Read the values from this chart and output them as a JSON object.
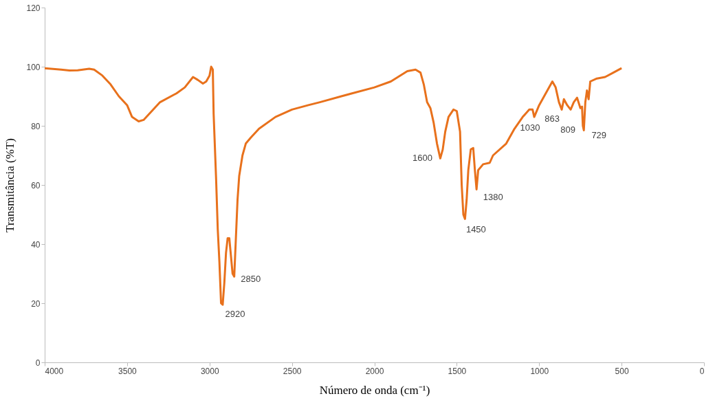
{
  "chart_data": {
    "type": "line",
    "xlabel": "Número de onda (cm⁻¹)",
    "ylabel": "Transmitância (%T)",
    "xlim": [
      4000,
      0
    ],
    "xticks": [
      4000,
      3500,
      3000,
      2500,
      2000,
      1500,
      1000,
      500,
      0
    ],
    "ylim": [
      0,
      120
    ],
    "yticks": [
      0,
      20,
      40,
      60,
      80,
      100,
      120
    ],
    "grid": false,
    "marker": "none",
    "line_style": "solid",
    "x": [
      4000,
      3900,
      3850,
      3800,
      3730,
      3700,
      3650,
      3600,
      3550,
      3500,
      3470,
      3430,
      3400,
      3350,
      3300,
      3200,
      3150,
      3100,
      3070,
      3040,
      3020,
      3000,
      2990,
      2980,
      2975,
      2960,
      2950,
      2940,
      2930,
      2920,
      2910,
      2900,
      2890,
      2880,
      2870,
      2860,
      2850,
      2840,
      2830,
      2820,
      2800,
      2780,
      2750,
      2700,
      2600,
      2500,
      2400,
      2330,
      2200,
      2000,
      1900,
      1800,
      1750,
      1720,
      1700,
      1680,
      1660,
      1640,
      1620,
      1600,
      1585,
      1570,
      1550,
      1520,
      1500,
      1480,
      1470,
      1460,
      1450,
      1440,
      1430,
      1415,
      1400,
      1390,
      1380,
      1370,
      1340,
      1300,
      1280,
      1200,
      1150,
      1100,
      1060,
      1040,
      1030,
      1000,
      960,
      920,
      900,
      880,
      863,
      850,
      830,
      809,
      790,
      770,
      750,
      740,
      735,
      729,
      720,
      710,
      700,
      690,
      650,
      600,
      550,
      500
    ],
    "series": [
      {
        "color": "#e8711c",
        "values": [
          99.5,
          99,
          98.7,
          98.8,
          99.3,
          99,
          97,
          94,
          90,
          87,
          83,
          81.5,
          82,
          85,
          88,
          91,
          93,
          96.5,
          95.5,
          94.3,
          95,
          97,
          100,
          99,
          84,
          62,
          45,
          34,
          20,
          19.5,
          27,
          37,
          42,
          42,
          36,
          30,
          29,
          42,
          55,
          63,
          70,
          74,
          76,
          79,
          83,
          85.5,
          87,
          88,
          90,
          93,
          95,
          98.5,
          99,
          98,
          94,
          88,
          86,
          81,
          74,
          69,
          72,
          78,
          83,
          85.5,
          85,
          78,
          60,
          50,
          48.5,
          55,
          65,
          72,
          72.5,
          65,
          58.5,
          65,
          67,
          67.5,
          70,
          74,
          79,
          83,
          85.5,
          85.5,
          83,
          87,
          91,
          95,
          93,
          88,
          85.5,
          89,
          87,
          85.5,
          88,
          89.5,
          86,
          86.5,
          80,
          78.5,
          88,
          92,
          89,
          95,
          96,
          96.5,
          98,
          99.5
        ]
      }
    ],
    "annotations": [
      {
        "text": "2920",
        "x": 2920,
        "y": 19.5
      },
      {
        "text": "2850",
        "x": 2850,
        "y": 29
      },
      {
        "text": "1600",
        "x": 1600,
        "y": 69
      },
      {
        "text": "1450",
        "x": 1450,
        "y": 48.5
      },
      {
        "text": "1380",
        "x": 1380,
        "y": 58.5
      },
      {
        "text": "1030",
        "x": 1030,
        "y": 83
      },
      {
        "text": "863",
        "x": 863,
        "y": 85.5
      },
      {
        "text": "809",
        "x": 809,
        "y": 85.5
      },
      {
        "text": "729",
        "x": 729,
        "y": 78.5
      }
    ]
  }
}
